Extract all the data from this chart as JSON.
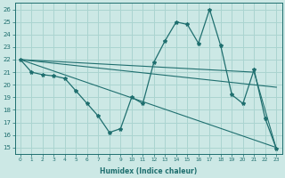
{
  "xlabel": "Humidex (Indice chaleur)",
  "xlim": [
    -0.5,
    23.5
  ],
  "ylim": [
    14.5,
    26.5
  ],
  "yticks": [
    15,
    16,
    17,
    18,
    19,
    20,
    21,
    22,
    23,
    24,
    25,
    26
  ],
  "xticks": [
    0,
    1,
    2,
    3,
    4,
    5,
    6,
    7,
    8,
    9,
    10,
    11,
    12,
    13,
    14,
    15,
    16,
    17,
    18,
    19,
    20,
    21,
    22,
    23
  ],
  "bg_color": "#cce8e5",
  "grid_color": "#aad4d0",
  "line_color": "#1f6f6f",
  "main_curve": {
    "x": [
      0,
      1,
      2,
      3,
      4,
      5,
      6,
      7,
      8,
      9,
      10,
      11,
      12,
      13,
      14,
      15,
      16,
      17,
      18,
      19,
      20,
      21,
      22,
      23
    ],
    "y": [
      22,
      21,
      20.8,
      20.7,
      20.5,
      19.5,
      18.5,
      17.5,
      16.2,
      16.5,
      19.0,
      18.5,
      21.8,
      23.5,
      25.0,
      24.8,
      23.3,
      26.0,
      23.1,
      19.2,
      18.5,
      21.2,
      17.3,
      14.9
    ]
  },
  "straight_lines": [
    {
      "x": [
        0,
        23
      ],
      "y": [
        22,
        15.0
      ]
    },
    {
      "x": [
        0,
        21,
        23
      ],
      "y": [
        22,
        21.0,
        14.9
      ]
    },
    {
      "x": [
        0,
        23
      ],
      "y": [
        22,
        19.8
      ]
    }
  ]
}
